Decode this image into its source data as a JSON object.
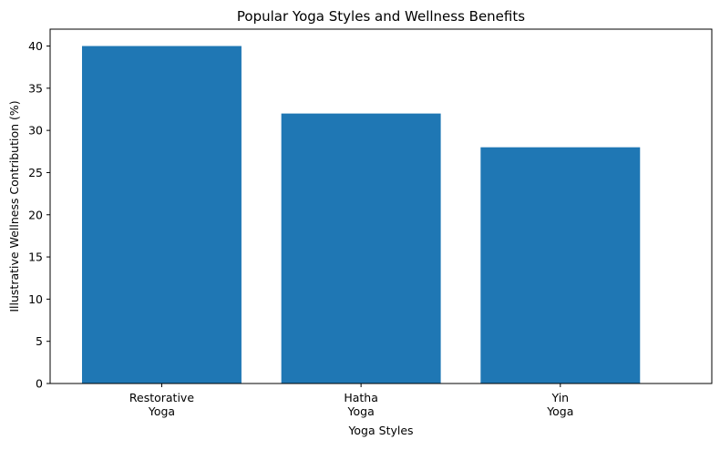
{
  "chart_data": {
    "type": "bar",
    "title": "Popular Yoga Styles and Wellness Benefits",
    "xlabel": "Yoga Styles",
    "ylabel": "Illustrative Wellness Contribution (%)",
    "categories": [
      "Restorative\nYoga",
      "Hatha\nYoga",
      "Yin\nYoga"
    ],
    "values": [
      40,
      32,
      28
    ],
    "ylim": [
      0,
      42
    ],
    "yticks": [
      0,
      5,
      10,
      15,
      20,
      25,
      30,
      35,
      40
    ],
    "grid": false,
    "bar_color": "#1f77b4"
  }
}
